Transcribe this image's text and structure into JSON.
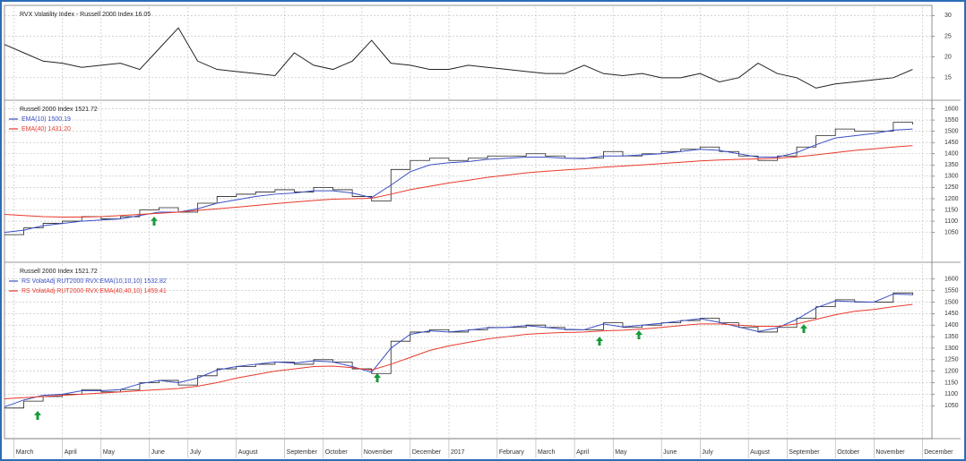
{
  "chart_data": [
    {
      "type": "line",
      "series": [
        {
          "name": "RVX Volatility Index - Russell 2000 Index 16.05",
          "color": "#222222",
          "style": "line",
          "values": [
            23,
            21,
            19,
            18.5,
            17.5,
            18,
            18.5,
            17,
            22,
            27,
            19,
            17,
            16.5,
            16,
            15.5,
            21,
            18,
            17,
            19,
            24,
            18.5,
            18,
            17,
            17,
            18,
            17.5,
            17,
            16.5,
            16,
            16,
            18,
            16,
            15.5,
            16,
            15,
            15,
            16,
            14,
            15,
            18.5,
            16,
            15,
            12.5,
            13.5,
            14,
            14.5,
            15,
            17
          ]
        }
      ],
      "x": [
        0,
        2,
        4,
        6,
        8,
        10,
        12,
        14,
        16,
        18,
        20,
        22,
        24,
        26,
        28,
        30,
        32,
        34,
        36,
        38,
        40,
        42,
        44,
        46,
        48,
        50,
        52,
        54,
        56,
        58,
        60,
        62,
        64,
        66,
        68,
        70,
        72,
        74,
        76,
        78,
        80,
        82,
        84,
        86,
        88,
        90,
        92,
        94
      ],
      "xlim": [
        0,
        96
      ],
      "ylim": [
        10,
        32
      ],
      "yticks": [
        15,
        20,
        25,
        30
      ],
      "grid": true
    },
    {
      "type": "line",
      "series": [
        {
          "name": "Russell 2000 Index 1521.72",
          "color": "#222222",
          "style": "step",
          "values": [
            1040,
            1070,
            1090,
            1100,
            1120,
            1110,
            1120,
            1150,
            1160,
            1140,
            1180,
            1210,
            1220,
            1230,
            1240,
            1230,
            1250,
            1240,
            1210,
            1190,
            1330,
            1370,
            1380,
            1370,
            1380,
            1390,
            1390,
            1400,
            1390,
            1380,
            1380,
            1410,
            1390,
            1400,
            1410,
            1420,
            1430,
            1410,
            1390,
            1370,
            1390,
            1430,
            1480,
            1510,
            1500,
            1500,
            1540,
            1530
          ]
        },
        {
          "name": "EMA(10) 1500.19",
          "color": "#3a4fc4",
          "style": "line",
          "values": [
            1050,
            1060,
            1080,
            1090,
            1100,
            1105,
            1110,
            1125,
            1140,
            1140,
            1155,
            1180,
            1195,
            1210,
            1220,
            1225,
            1235,
            1235,
            1225,
            1205,
            1260,
            1320,
            1350,
            1360,
            1365,
            1375,
            1380,
            1385,
            1385,
            1380,
            1378,
            1390,
            1390,
            1395,
            1400,
            1410,
            1420,
            1415,
            1400,
            1385,
            1385,
            1405,
            1440,
            1470,
            1480,
            1490,
            1505,
            1510
          ]
        },
        {
          "name": "EMA(40) 1431.20",
          "color": "#e8392b",
          "style": "line",
          "values": [
            1130,
            1125,
            1120,
            1118,
            1118,
            1120,
            1125,
            1130,
            1135,
            1140,
            1148,
            1155,
            1162,
            1170,
            1178,
            1185,
            1192,
            1198,
            1200,
            1202,
            1220,
            1240,
            1255,
            1270,
            1282,
            1295,
            1305,
            1315,
            1322,
            1328,
            1333,
            1340,
            1345,
            1350,
            1356,
            1362,
            1368,
            1372,
            1375,
            1377,
            1380,
            1386,
            1395,
            1405,
            1415,
            1422,
            1430,
            1436
          ]
        }
      ],
      "x": [
        0,
        2,
        4,
        6,
        8,
        10,
        12,
        14,
        16,
        18,
        20,
        22,
        24,
        26,
        28,
        30,
        32,
        34,
        36,
        38,
        40,
        42,
        44,
        46,
        48,
        50,
        52,
        54,
        56,
        58,
        60,
        62,
        64,
        66,
        68,
        70,
        72,
        74,
        76,
        78,
        80,
        82,
        84,
        86,
        88,
        90,
        92,
        94
      ],
      "xlim": [
        0,
        96
      ],
      "ylim": [
        925,
        1630
      ],
      "yticks": [
        1050,
        1100,
        1150,
        1200,
        1250,
        1300,
        1350,
        1400,
        1450,
        1500,
        1550,
        1600
      ],
      "grid": true
    },
    {
      "type": "line",
      "series": [
        {
          "name": "Russell 2000 Index 1521.72",
          "color": "#222222",
          "style": "step",
          "values": [
            1040,
            1070,
            1090,
            1100,
            1120,
            1110,
            1120,
            1150,
            1160,
            1140,
            1180,
            1210,
            1220,
            1230,
            1240,
            1230,
            1250,
            1240,
            1210,
            1190,
            1330,
            1370,
            1380,
            1370,
            1380,
            1390,
            1390,
            1400,
            1390,
            1380,
            1380,
            1410,
            1390,
            1400,
            1410,
            1420,
            1430,
            1410,
            1390,
            1370,
            1390,
            1430,
            1480,
            1510,
            1500,
            1500,
            1540,
            1530
          ]
        },
        {
          "name": "RS VolatAdj RUT2000 RVX:EMA(10,10,10) 1532.82",
          "color": "#3a4fc4",
          "style": "line",
          "values": [
            1045,
            1075,
            1095,
            1100,
            1115,
            1115,
            1120,
            1145,
            1160,
            1150,
            1170,
            1205,
            1220,
            1230,
            1240,
            1235,
            1245,
            1240,
            1220,
            1195,
            1300,
            1360,
            1375,
            1370,
            1378,
            1388,
            1390,
            1398,
            1390,
            1382,
            1380,
            1405,
            1392,
            1400,
            1408,
            1418,
            1428,
            1412,
            1392,
            1372,
            1388,
            1425,
            1475,
            1505,
            1502,
            1500,
            1535,
            1532
          ]
        },
        {
          "name": "RS VolatAdj RUT2000 RVX:EMA(40,40,10) 1459.41",
          "color": "#e8392b",
          "style": "line",
          "values": [
            1080,
            1085,
            1090,
            1095,
            1100,
            1105,
            1110,
            1115,
            1120,
            1125,
            1135,
            1150,
            1170,
            1185,
            1200,
            1210,
            1220,
            1222,
            1215,
            1205,
            1230,
            1260,
            1290,
            1310,
            1325,
            1340,
            1350,
            1360,
            1365,
            1368,
            1370,
            1375,
            1378,
            1383,
            1390,
            1398,
            1405,
            1405,
            1400,
            1395,
            1395,
            1405,
            1425,
            1445,
            1460,
            1468,
            1480,
            1490
          ]
        }
      ],
      "x": [
        0,
        2,
        4,
        6,
        8,
        10,
        12,
        14,
        16,
        18,
        20,
        22,
        24,
        26,
        28,
        30,
        32,
        34,
        36,
        38,
        40,
        42,
        44,
        46,
        48,
        50,
        52,
        54,
        56,
        58,
        60,
        62,
        64,
        66,
        68,
        70,
        72,
        74,
        76,
        78,
        80,
        82,
        84,
        86,
        88,
        90,
        92,
        94
      ],
      "xlim": [
        0,
        96
      ],
      "ylim": [
        915,
        1665
      ],
      "yticks": [
        1050,
        1100,
        1150,
        1200,
        1250,
        1300,
        1350,
        1400,
        1450,
        1500,
        1550,
        1600
      ],
      "grid": true,
      "xticks": [
        {
          "value": 1,
          "label": "March"
        },
        {
          "value": 6,
          "label": "April"
        },
        {
          "value": 10,
          "label": "May"
        },
        {
          "value": 15,
          "label": "June"
        },
        {
          "value": 19,
          "label": "July"
        },
        {
          "value": 24,
          "label": "August"
        },
        {
          "value": 29,
          "label": "September"
        },
        {
          "value": 33,
          "label": "October"
        },
        {
          "value": 37,
          "label": "November"
        },
        {
          "value": 42,
          "label": "December"
        },
        {
          "value": 46,
          "label": "2017"
        },
        {
          "value": 51,
          "label": "February"
        },
        {
          "value": 55,
          "label": "March"
        },
        {
          "value": 59,
          "label": "April"
        },
        {
          "value": 63,
          "label": "May"
        },
        {
          "value": 68,
          "label": "June"
        },
        {
          "value": 72,
          "label": "July"
        },
        {
          "value": 77,
          "label": "August"
        },
        {
          "value": 81,
          "label": "September"
        },
        {
          "value": 86,
          "label": "October"
        },
        {
          "value": 90,
          "label": "November"
        },
        {
          "value": 95,
          "label": "December"
        }
      ]
    }
  ]
}
